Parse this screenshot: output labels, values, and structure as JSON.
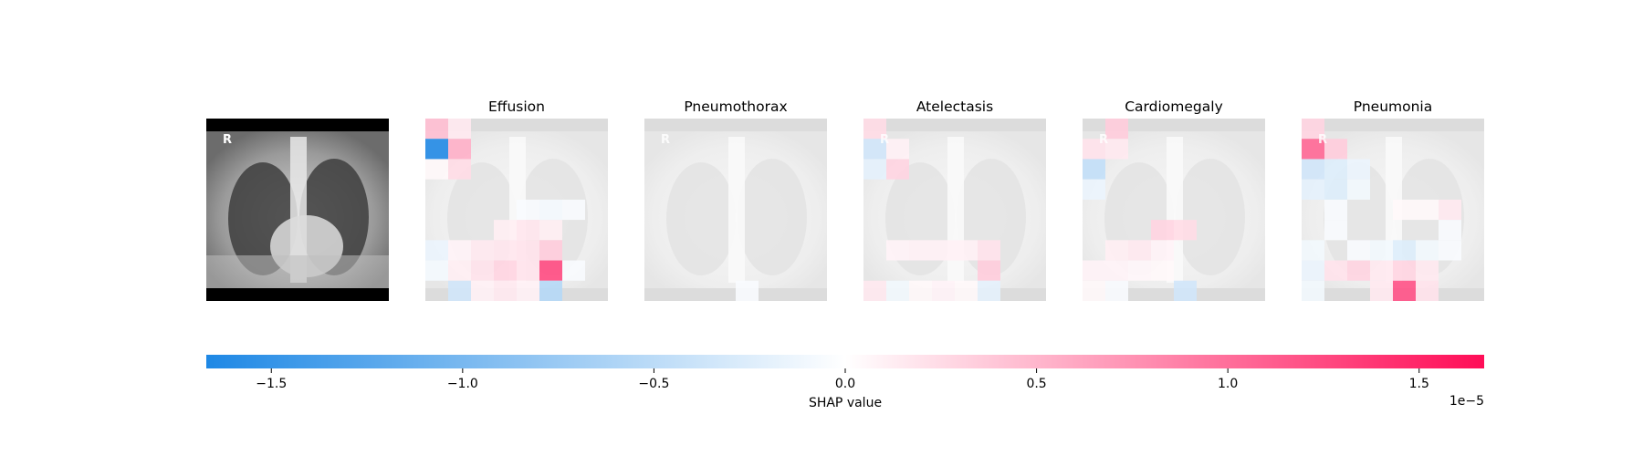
{
  "chart_data": {
    "type": "heatmap",
    "description_source": "shap.image_plot",
    "panels": [
      {
        "title": "",
        "kind": "input-image",
        "marker": "R"
      },
      {
        "title": "Effusion",
        "kind": "shap-overlay",
        "marker": ""
      },
      {
        "title": "Pneumothorax",
        "kind": "shap-overlay",
        "marker": "R"
      },
      {
        "title": "Atelectasis",
        "kind": "shap-overlay",
        "marker": "R"
      },
      {
        "title": "Cardiomegaly",
        "kind": "shap-overlay",
        "marker": "R"
      },
      {
        "title": "Pneumonia",
        "kind": "shap-overlay",
        "marker": "R"
      }
    ],
    "grid": {
      "rows": 8,
      "cols": 8
    },
    "cells": {
      "Effusion": [
        [
          0,
          0,
          0.45
        ],
        [
          0,
          1,
          0.15
        ],
        [
          1,
          0,
          -1.65
        ],
        [
          1,
          1,
          0.55
        ],
        [
          2,
          0,
          0.05
        ],
        [
          2,
          1,
          0.25
        ],
        [
          4,
          4,
          -0.05
        ],
        [
          4,
          5,
          -0.08
        ],
        [
          4,
          6,
          -0.05
        ],
        [
          5,
          3,
          0.12
        ],
        [
          5,
          4,
          0.18
        ],
        [
          5,
          5,
          0.12
        ],
        [
          6,
          0,
          -0.15
        ],
        [
          6,
          1,
          0.08
        ],
        [
          6,
          2,
          0.15
        ],
        [
          6,
          3,
          0.18
        ],
        [
          6,
          4,
          0.2
        ],
        [
          6,
          5,
          0.35
        ],
        [
          7,
          0,
          -0.08
        ],
        [
          7,
          1,
          0.12
        ],
        [
          7,
          2,
          0.2
        ],
        [
          7,
          3,
          0.3
        ],
        [
          7,
          4,
          0.2
        ],
        [
          7,
          5,
          1.25
        ],
        [
          7,
          6,
          -0.05
        ],
        [
          8,
          1,
          -0.35
        ],
        [
          8,
          2,
          0.1
        ],
        [
          8,
          3,
          0.15
        ],
        [
          8,
          4,
          0.1
        ],
        [
          8,
          5,
          -0.55
        ]
      ],
      "Pneumothorax": [
        [
          8,
          4,
          -0.05
        ]
      ],
      "Atelectasis": [
        [
          0,
          0,
          0.25
        ],
        [
          1,
          0,
          -0.35
        ],
        [
          1,
          1,
          0.1
        ],
        [
          2,
          0,
          -0.2
        ],
        [
          2,
          1,
          0.3
        ],
        [
          6,
          1,
          0.08
        ],
        [
          6,
          2,
          0.1
        ],
        [
          6,
          3,
          0.1
        ],
        [
          6,
          4,
          0.1
        ],
        [
          6,
          5,
          0.2
        ],
        [
          7,
          5,
          0.35
        ],
        [
          8,
          0,
          0.15
        ],
        [
          8,
          1,
          -0.1
        ],
        [
          8,
          2,
          0.05
        ],
        [
          8,
          3,
          0.08
        ],
        [
          8,
          4,
          0.05
        ],
        [
          8,
          5,
          -0.2
        ]
      ],
      "Cardiomegaly": [
        [
          0,
          1,
          0.35
        ],
        [
          1,
          0,
          0.2
        ],
        [
          1,
          1,
          0.15
        ],
        [
          2,
          0,
          -0.45
        ],
        [
          3,
          0,
          -0.15
        ],
        [
          5,
          3,
          0.3
        ],
        [
          5,
          4,
          0.25
        ],
        [
          6,
          1,
          0.12
        ],
        [
          6,
          2,
          0.15
        ],
        [
          6,
          3,
          0.08
        ],
        [
          7,
          0,
          0.08
        ],
        [
          7,
          1,
          0.08
        ],
        [
          7,
          2,
          0.06
        ],
        [
          7,
          3,
          0.05
        ],
        [
          8,
          0,
          0.05
        ],
        [
          8,
          1,
          -0.05
        ],
        [
          8,
          4,
          -0.35
        ]
      ],
      "Pneumonia": [
        [
          0,
          0,
          0.3
        ],
        [
          1,
          0,
          1.05
        ],
        [
          1,
          1,
          0.35
        ],
        [
          2,
          0,
          -0.35
        ],
        [
          2,
          1,
          -0.25
        ],
        [
          2,
          2,
          -0.15
        ],
        [
          3,
          0,
          -0.2
        ],
        [
          3,
          1,
          -0.25
        ],
        [
          3,
          2,
          -0.1
        ],
        [
          4,
          1,
          -0.05
        ],
        [
          4,
          4,
          0.05
        ],
        [
          4,
          5,
          0.05
        ],
        [
          4,
          6,
          0.15
        ],
        [
          5,
          1,
          -0.05
        ],
        [
          5,
          6,
          -0.05
        ],
        [
          6,
          0,
          -0.1
        ],
        [
          6,
          2,
          -0.05
        ],
        [
          6,
          3,
          -0.1
        ],
        [
          6,
          4,
          -0.25
        ],
        [
          6,
          5,
          -0.1
        ],
        [
          6,
          6,
          -0.05
        ],
        [
          7,
          0,
          -0.15
        ],
        [
          7,
          1,
          0.2
        ],
        [
          7,
          2,
          0.3
        ],
        [
          7,
          3,
          0.15
        ],
        [
          7,
          4,
          0.3
        ],
        [
          7,
          5,
          0.15
        ],
        [
          8,
          0,
          -0.1
        ],
        [
          8,
          3,
          0.15
        ],
        [
          8,
          4,
          1.2
        ],
        [
          8,
          5,
          0.2
        ]
      ]
    },
    "colorbar": {
      "label": "SHAP value",
      "multiplier": "1e−5",
      "vmin": -1.67,
      "vmax": 1.67,
      "ticks": [
        -1.5,
        -1.0,
        -0.5,
        0.0,
        0.5,
        1.0,
        1.5
      ],
      "tick_labels": [
        "−1.5",
        "−1.0",
        "−0.5",
        "0.0",
        "0.5",
        "1.0",
        "1.5"
      ],
      "colors": {
        "negative": "#1e88e5",
        "zero": "#ffffff",
        "positive": "#ff0d57"
      },
      "placement": "bottom"
    }
  }
}
